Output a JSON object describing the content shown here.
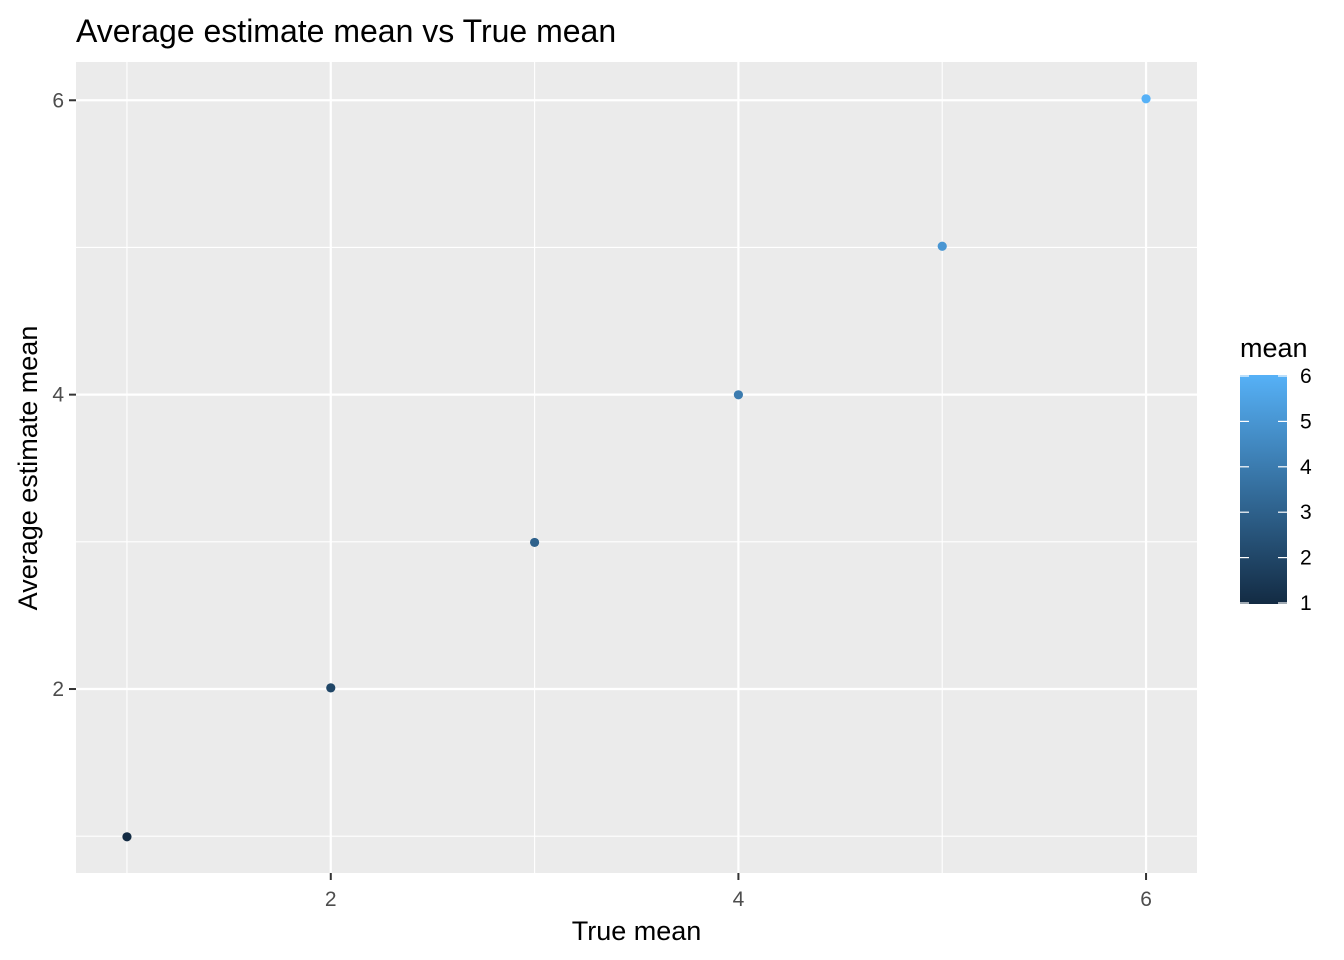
{
  "chart_data": {
    "type": "scatter",
    "title": "Average estimate mean vs True mean",
    "xlabel": "True mean",
    "ylabel": "Average estimate mean",
    "x": [
      1,
      2,
      3,
      4,
      5,
      6
    ],
    "y": [
      0.996,
      2.008,
      2.996,
      3.999,
      5.008,
      6.01
    ],
    "color_values": [
      1,
      2,
      3,
      4,
      5,
      6
    ],
    "xlim": [
      0.75,
      6.25
    ],
    "ylim": [
      0.75,
      6.26
    ],
    "xticks": [
      2,
      4,
      6
    ],
    "yticks": [
      2,
      4,
      6
    ],
    "grid": true,
    "legend": {
      "title": "mean",
      "position": "right",
      "ticks": [
        1,
        2,
        3,
        4,
        5,
        6
      ],
      "color_low": "#132B43",
      "color_high": "#56B1F7"
    },
    "panel_background": "#EBEBEB",
    "grid_color": "#FFFFFF"
  }
}
